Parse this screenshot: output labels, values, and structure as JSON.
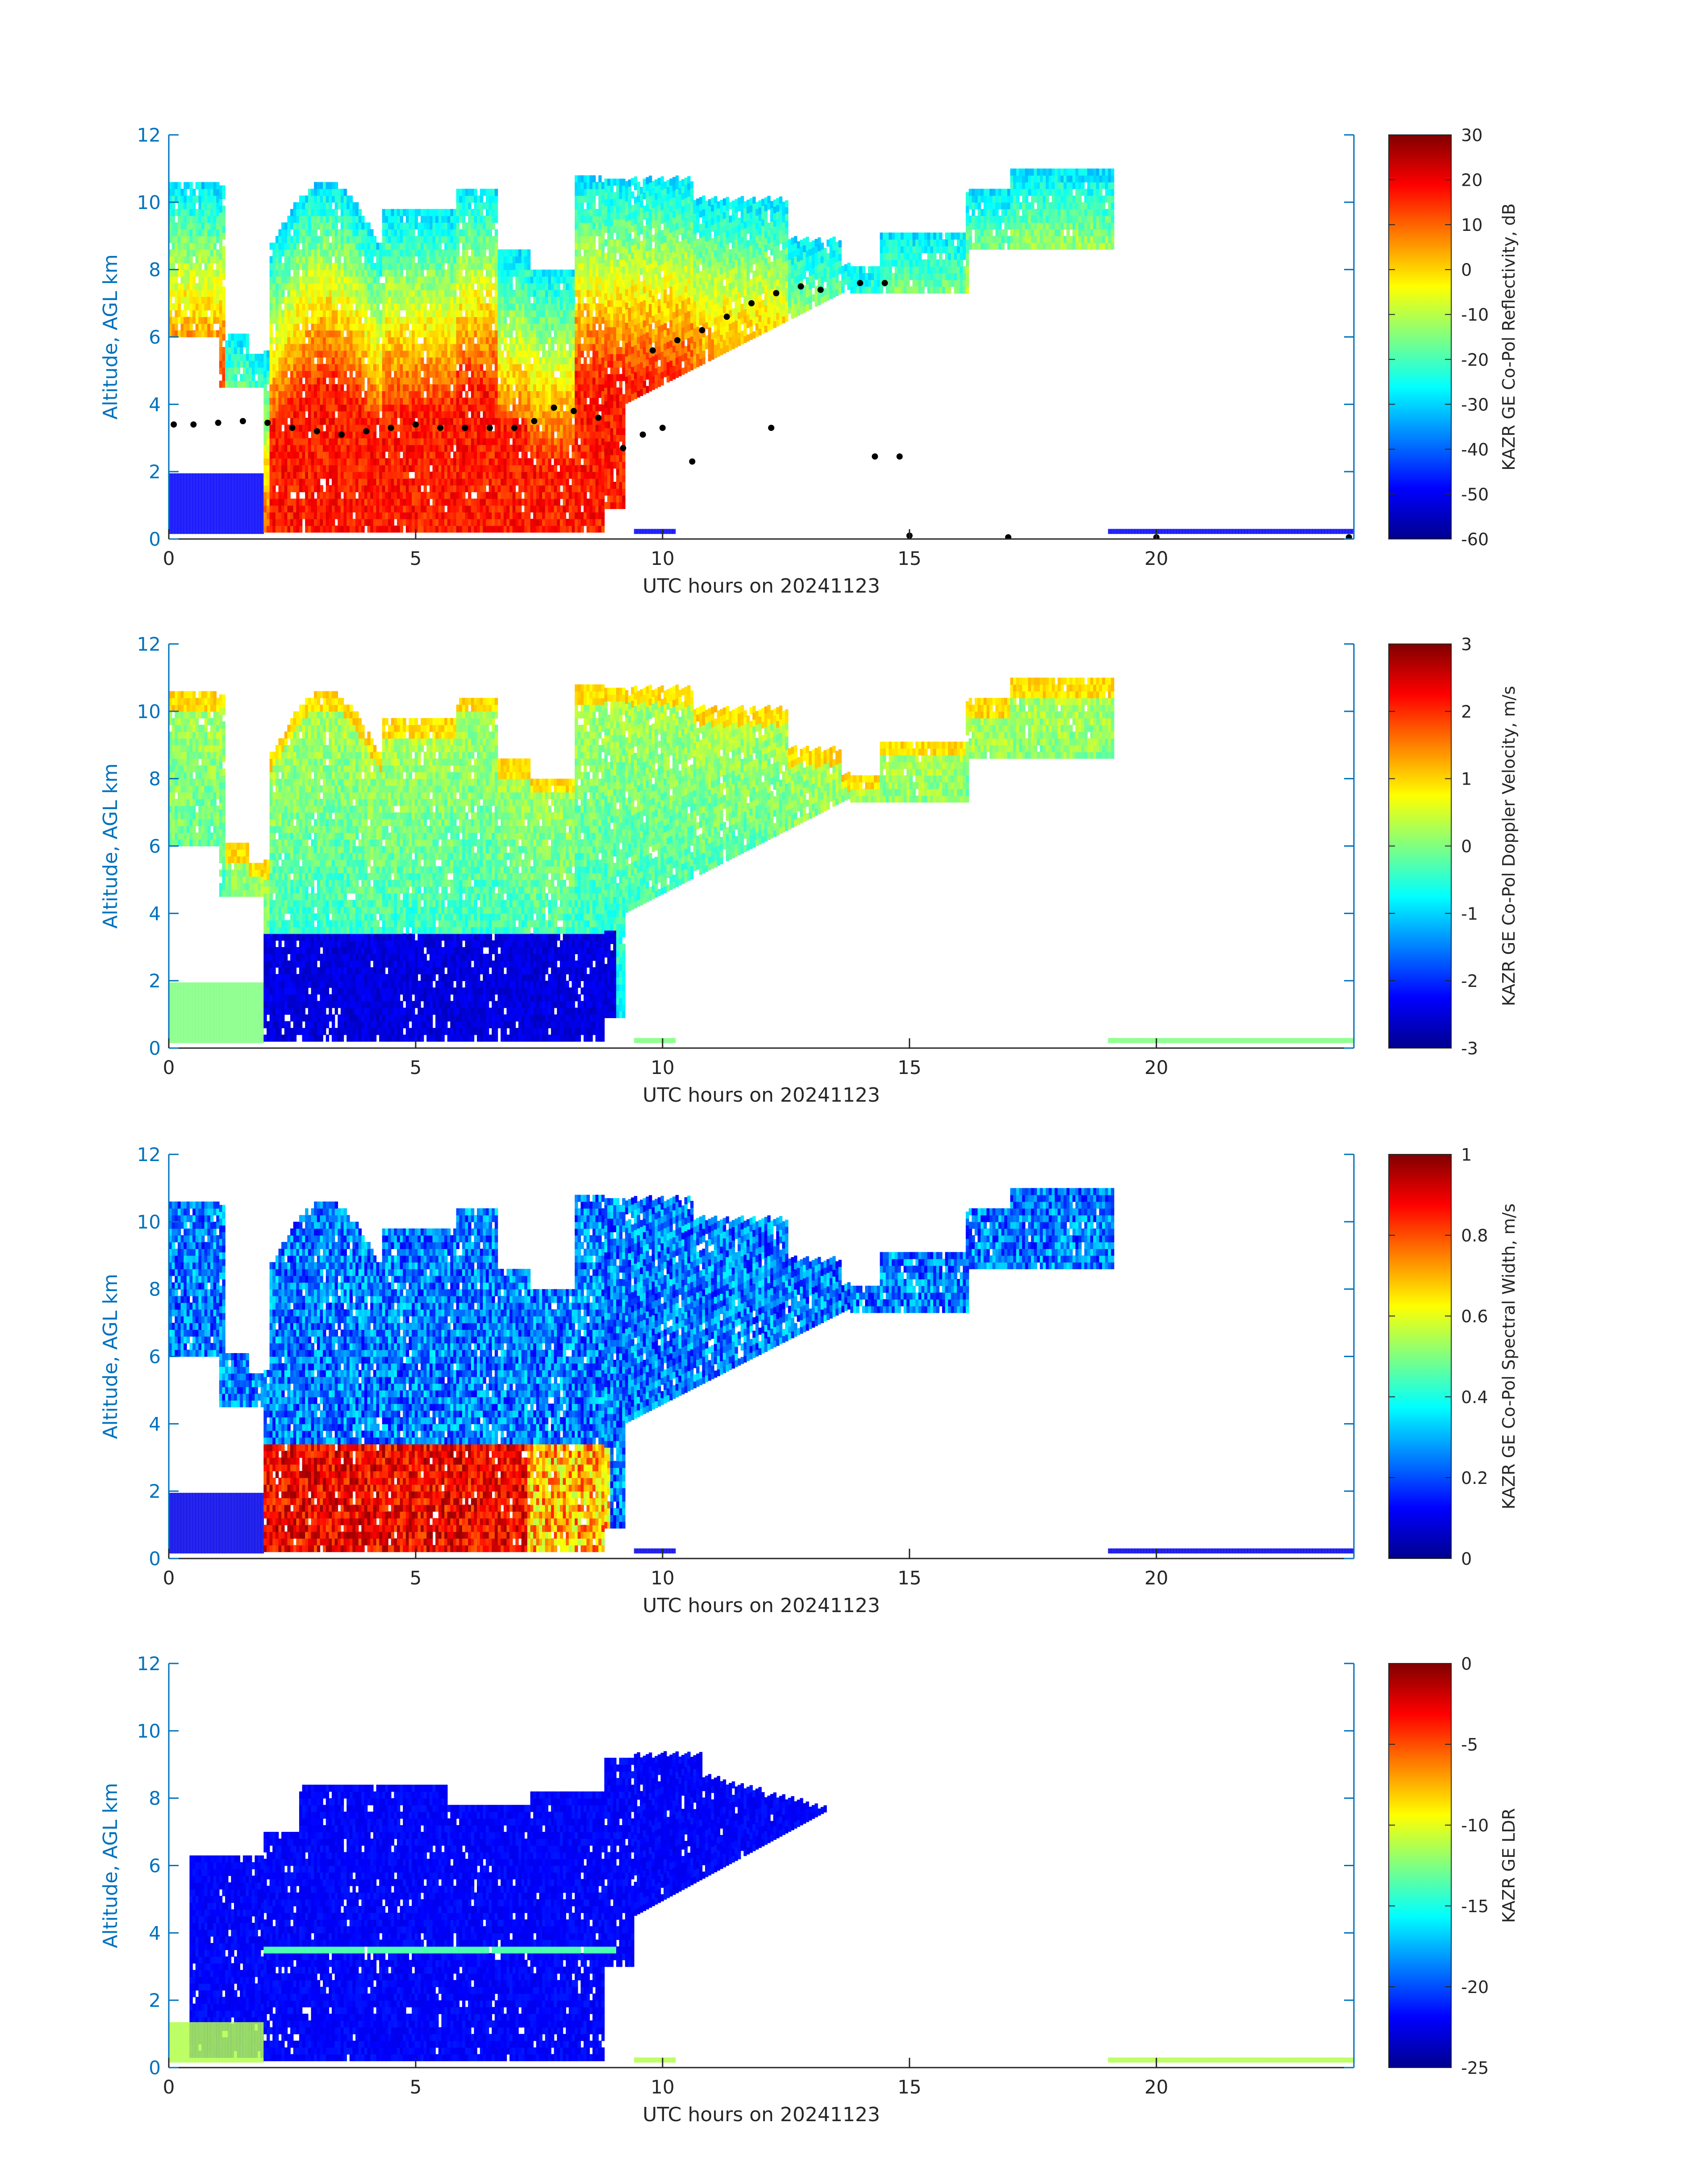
{
  "colormap": [
    "#00008f",
    "#0000ff",
    "#0080ff",
    "#00ffff",
    "#80ff80",
    "#ffff00",
    "#ff8000",
    "#ff0000",
    "#800000"
  ],
  "axis_color": "#0072bd",
  "chart_data": [
    {
      "type": "heatmap",
      "panel": "reflectivity",
      "xlabel": "UTC hours on 20241123",
      "ylabel": "Altitude, AGL km",
      "xlim": [
        0,
        24
      ],
      "ylim": [
        0,
        12
      ],
      "xticks": [
        0,
        5,
        10,
        15,
        20
      ],
      "yticks": [
        0,
        2,
        4,
        6,
        8,
        10,
        12
      ],
      "colorbar": {
        "label": "KAZR GE Co-Pol Reflectivity, dB",
        "clim": [
          -60,
          30
        ],
        "ticks": [
          30,
          20,
          10,
          0,
          -10,
          -20,
          -30,
          -40,
          -50,
          -60
        ]
      },
      "overlay_points": [
        {
          "x": 0.1,
          "y": 3.4
        },
        {
          "x": 0.5,
          "y": 3.4
        },
        {
          "x": 1.0,
          "y": 3.45
        },
        {
          "x": 1.5,
          "y": 3.5
        },
        {
          "x": 2.0,
          "y": 3.45
        },
        {
          "x": 2.5,
          "y": 3.3
        },
        {
          "x": 3.0,
          "y": 3.2
        },
        {
          "x": 3.5,
          "y": 3.1
        },
        {
          "x": 4.0,
          "y": 3.2
        },
        {
          "x": 4.5,
          "y": 3.3
        },
        {
          "x": 5.0,
          "y": 3.4
        },
        {
          "x": 5.5,
          "y": 3.3
        },
        {
          "x": 6.0,
          "y": 3.3
        },
        {
          "x": 6.5,
          "y": 3.3
        },
        {
          "x": 7.0,
          "y": 3.3
        },
        {
          "x": 7.4,
          "y": 3.5
        },
        {
          "x": 7.8,
          "y": 3.9
        },
        {
          "x": 8.2,
          "y": 3.8
        },
        {
          "x": 8.7,
          "y": 3.6
        },
        {
          "x": 9.2,
          "y": 2.7
        },
        {
          "x": 9.6,
          "y": 3.1
        },
        {
          "x": 10.0,
          "y": 3.3
        },
        {
          "x": 10.6,
          "y": 2.3
        },
        {
          "x": 9.8,
          "y": 5.6
        },
        {
          "x": 10.3,
          "y": 5.9
        },
        {
          "x": 10.8,
          "y": 6.2
        },
        {
          "x": 11.3,
          "y": 6.6
        },
        {
          "x": 11.8,
          "y": 7.0
        },
        {
          "x": 12.3,
          "y": 7.3
        },
        {
          "x": 12.8,
          "y": 7.5
        },
        {
          "x": 13.2,
          "y": 7.4
        },
        {
          "x": 14.0,
          "y": 7.6
        },
        {
          "x": 14.5,
          "y": 7.6
        },
        {
          "x": 12.2,
          "y": 3.3
        },
        {
          "x": 14.3,
          "y": 2.45
        },
        {
          "x": 14.8,
          "y": 2.45
        },
        {
          "x": 15.0,
          "y": 0.1
        },
        {
          "x": 17.0,
          "y": 0.05
        },
        {
          "x": 20.0,
          "y": 0.05
        },
        {
          "x": 23.9,
          "y": 0.05
        }
      ]
    },
    {
      "type": "heatmap",
      "panel": "doppler_velocity",
      "xlabel": "UTC hours on 20241123",
      "ylabel": "Altitude, AGL km",
      "xlim": [
        0,
        24
      ],
      "ylim": [
        0,
        12
      ],
      "xticks": [
        0,
        5,
        10,
        15,
        20
      ],
      "yticks": [
        0,
        2,
        4,
        6,
        8,
        10,
        12
      ],
      "colorbar": {
        "label": "KAZR GE Co-Pol Doppler Velocity, m/s",
        "clim": [
          -3,
          3
        ],
        "ticks": [
          3,
          2,
          1,
          0,
          -1,
          -2,
          -3
        ]
      }
    },
    {
      "type": "heatmap",
      "panel": "spectral_width",
      "xlabel": "UTC hours on 20241123",
      "ylabel": "Altitude, AGL km",
      "xlim": [
        0,
        24
      ],
      "ylim": [
        0,
        12
      ],
      "xticks": [
        0,
        5,
        10,
        15,
        20
      ],
      "yticks": [
        0,
        2,
        4,
        6,
        8,
        10,
        12
      ],
      "colorbar": {
        "label": "KAZR GE Co-Pol Spectral Width, m/s",
        "clim": [
          0,
          1
        ],
        "ticks": [
          1,
          0.8,
          0.6,
          0.4,
          0.2,
          0
        ]
      }
    },
    {
      "type": "heatmap",
      "panel": "ldr",
      "xlabel": "UTC hours on 20241123",
      "ylabel": "Altitude, AGL km",
      "xlim": [
        0,
        24
      ],
      "ylim": [
        0,
        12
      ],
      "xticks": [
        0,
        5,
        10,
        15,
        20
      ],
      "yticks": [
        0,
        2,
        4,
        6,
        8,
        10,
        12
      ],
      "colorbar": {
        "label": "KAZR GE LDR",
        "clim": [
          -25,
          0
        ],
        "ticks": [
          0,
          -5,
          -10,
          -15,
          -20,
          -25
        ]
      }
    }
  ]
}
